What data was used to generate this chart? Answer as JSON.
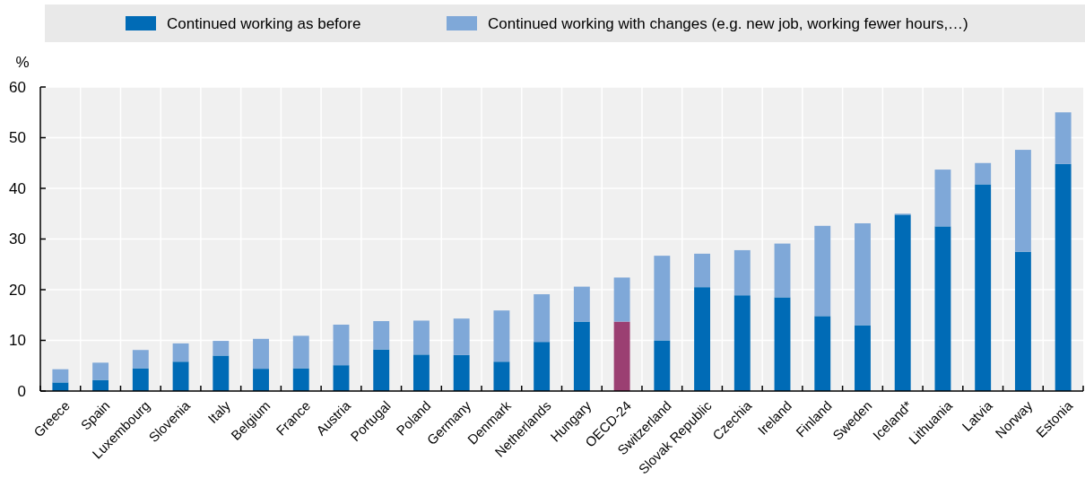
{
  "chart_data": {
    "type": "bar",
    "stacked": true,
    "ylabel": "%",
    "categories": [
      "Greece",
      "Spain",
      "Luxembourg",
      "Slovenia",
      "Italy",
      "Belgium",
      "France",
      "Austria",
      "Portugal",
      "Poland",
      "Germany",
      "Denmark",
      "Netherlands",
      "Hungary",
      "OECD-24",
      "Switzerland",
      "Slovak Republic",
      "Czechia",
      "Ireland",
      "Finland",
      "Sweden",
      "Iceland*",
      "Lithuania",
      "Latvia",
      "Norway",
      "Estonia"
    ],
    "series": [
      {
        "name": "Continued working as before",
        "color": "#006bb6",
        "colors": [
          "#006bb6",
          "#006bb6",
          "#006bb6",
          "#006bb6",
          "#006bb6",
          "#006bb6",
          "#006bb6",
          "#006bb6",
          "#006bb6",
          "#006bb6",
          "#006bb6",
          "#006bb6",
          "#006bb6",
          "#006bb6",
          "#9b3f72",
          "#006bb6",
          "#006bb6",
          "#006bb6",
          "#006bb6",
          "#006bb6",
          "#006bb6",
          "#006bb6",
          "#006bb6",
          "#006bb6",
          "#006bb6",
          "#006bb6"
        ],
        "values": [
          1.7,
          2.2,
          4.5,
          5.8,
          7.0,
          4.4,
          4.5,
          5.1,
          8.2,
          7.2,
          7.1,
          5.8,
          9.7,
          13.7,
          13.7,
          10.0,
          20.5,
          18.9,
          18.5,
          14.8,
          13.0,
          34.8,
          32.5,
          40.8,
          27.5,
          44.8
        ]
      },
      {
        "name": "Continued working with changes (e.g. new job, working fewer hours,…)",
        "color": "#7fa8d8",
        "values": [
          2.6,
          3.4,
          3.6,
          3.6,
          2.9,
          5.9,
          6.4,
          8.0,
          5.6,
          6.7,
          7.2,
          10.1,
          9.4,
          6.9,
          8.7,
          16.7,
          6.6,
          8.9,
          10.6,
          17.8,
          20.1,
          0.2,
          11.2,
          4.2,
          20.1,
          10.2
        ]
      }
    ],
    "ylim": [
      0,
      60
    ],
    "yticks": [
      0,
      10,
      20,
      30,
      40,
      50,
      60
    ],
    "grid": true,
    "legend": "top"
  }
}
